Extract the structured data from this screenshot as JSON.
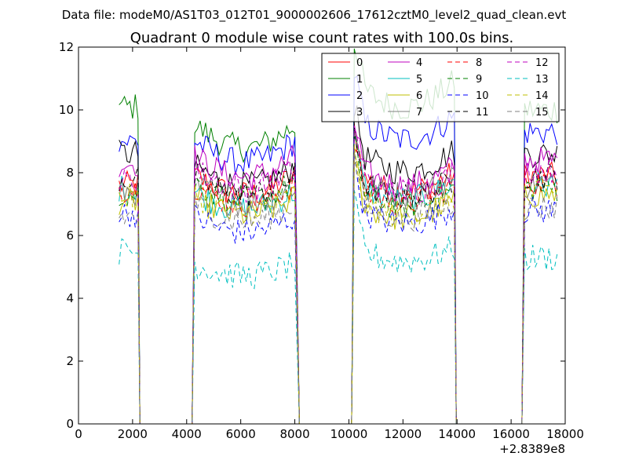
{
  "chart_data": {
    "type": "line",
    "suptitle": "Data file: modeM0/AS1T03_012T01_9000002606_17612cztM0_level2_quad_clean.evt",
    "title": "Quadrant 0 module wise count rates with 100.0s bins.",
    "xlabel": "",
    "ylabel": "",
    "xlim": [
      0,
      18000
    ],
    "ylim": [
      0,
      12
    ],
    "x_offset_label": "+2.8389e8",
    "x_ticks": [
      0,
      2000,
      4000,
      6000,
      8000,
      10000,
      12000,
      14000,
      16000,
      18000
    ],
    "x_tick_labels": [
      "0",
      "2000",
      "4000",
      "6000",
      "8000",
      "10000",
      "12000",
      "14000",
      "16000",
      "18000"
    ],
    "y_ticks": [
      0,
      2,
      4,
      6,
      8,
      10,
      12
    ],
    "y_tick_labels": [
      "0",
      "2",
      "4",
      "6",
      "8",
      "10",
      "12"
    ],
    "grid": false,
    "legend_position": "top-right",
    "legend_columns": 4,
    "segments": [
      {
        "start": 1500,
        "end": 2200
      },
      {
        "start": 4300,
        "end": 8000
      },
      {
        "start": 10200,
        "end": 13900
      },
      {
        "start": 16500,
        "end": 17700
      }
    ],
    "gaps": [
      {
        "start": 2300,
        "end": 4200
      },
      {
        "start": 8200,
        "end": 10100
      },
      {
        "start": 14000,
        "end": 16400
      }
    ],
    "bin_width": 100,
    "series": [
      {
        "name": "0",
        "color": "#ff0000",
        "dash": "solid",
        "levels": [
          7.6,
          7.9,
          8.0,
          7.9
        ]
      },
      {
        "name": "1",
        "color": "#008000",
        "dash": "solid",
        "levels": [
          10.1,
          9.5,
          10.9,
          10.0
        ]
      },
      {
        "name": "2",
        "color": "#0000ff",
        "dash": "solid",
        "levels": [
          9.0,
          9.0,
          9.8,
          9.3
        ]
      },
      {
        "name": "3",
        "color": "#000000",
        "dash": "solid",
        "levels": [
          8.6,
          8.2,
          8.7,
          8.6
        ]
      },
      {
        "name": "4",
        "color": "#bf00bf",
        "dash": "solid",
        "levels": [
          8.3,
          8.5,
          8.2,
          8.4
        ]
      },
      {
        "name": "5",
        "color": "#00bfbf",
        "dash": "solid",
        "levels": [
          7.5,
          7.4,
          7.7,
          7.6
        ]
      },
      {
        "name": "6",
        "color": "#bfbf00",
        "dash": "solid",
        "levels": [
          7.1,
          7.2,
          7.1,
          7.3
        ]
      },
      {
        "name": "7",
        "color": "#808080",
        "dash": "solid",
        "levels": [
          7.4,
          7.6,
          7.9,
          7.6
        ]
      },
      {
        "name": "8",
        "color": "#ff0000",
        "dash": "dashed",
        "levels": [
          7.5,
          7.6,
          7.6,
          7.7
        ]
      },
      {
        "name": "9",
        "color": "#008000",
        "dash": "dashed",
        "levels": [
          7.3,
          7.7,
          7.5,
          7.5
        ]
      },
      {
        "name": "10",
        "color": "#0000ff",
        "dash": "dashed",
        "levels": [
          6.7,
          6.6,
          6.9,
          6.8
        ]
      },
      {
        "name": "11",
        "color": "#000000",
        "dash": "dashed",
        "levels": [
          7.8,
          7.9,
          7.8,
          7.9
        ]
      },
      {
        "name": "12",
        "color": "#bf00bf",
        "dash": "dashed",
        "levels": [
          7.7,
          8.1,
          8.0,
          8.1
        ]
      },
      {
        "name": "13",
        "color": "#00bfbf",
        "dash": "dashed",
        "levels": [
          5.5,
          5.1,
          5.6,
          5.3
        ]
      },
      {
        "name": "14",
        "color": "#bfbf00",
        "dash": "dashed",
        "levels": [
          7.2,
          7.3,
          7.2,
          7.4
        ]
      },
      {
        "name": "15",
        "color": "#808080",
        "dash": "dashed",
        "levels": [
          6.6,
          7.0,
          7.1,
          6.9
        ]
      }
    ]
  }
}
